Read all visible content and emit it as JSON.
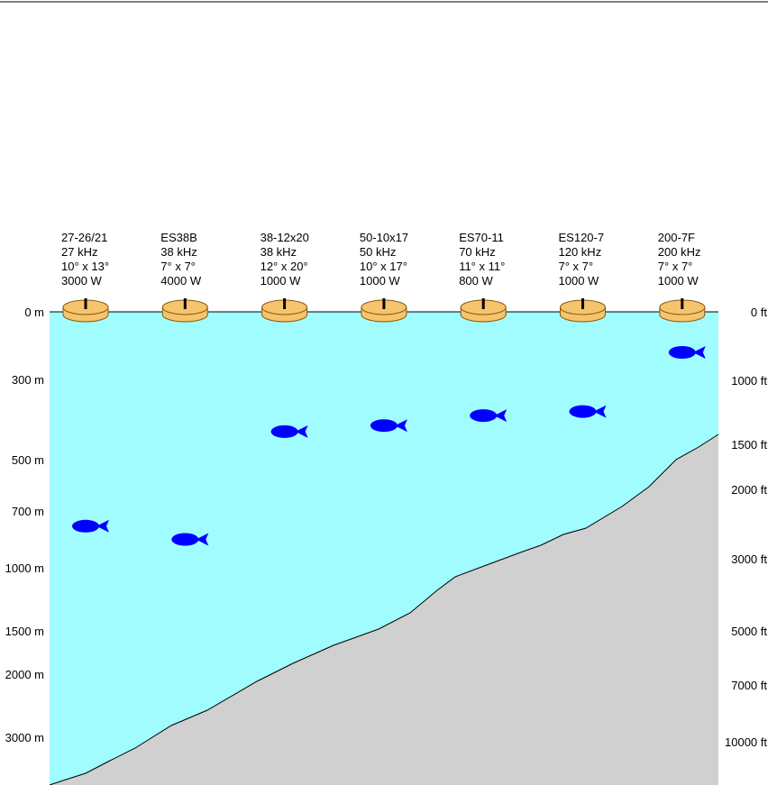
{
  "colors": {
    "water": "#a0fcfe",
    "seafloor": "#d0d0d0",
    "transducer": "#f6c46c",
    "transducer_outline": "#8a5a10",
    "fish": "#0000ff",
    "rule": "#000000"
  },
  "transducers": [
    {
      "model": "27-26/21",
      "frequency": "27 kHz",
      "beam": "10° x 13°",
      "power": "3000 W",
      "fish_depth_m": 780
    },
    {
      "model": "ES38B",
      "frequency": "38 kHz",
      "beam": "7° x 7°",
      "power": "4000 W",
      "fish_depth_m": 850
    },
    {
      "model": "38-12x20",
      "frequency": "38 kHz",
      "beam": "12° x 20°",
      "power": "1000 W",
      "fish_depth_m": 430
    },
    {
      "model": "50-10x17",
      "frequency": "50 kHz",
      "beam": "10° x 17°",
      "power": "1000 W",
      "fish_depth_m": 415
    },
    {
      "model": "ES70-11",
      "frequency": "70 kHz",
      "beam": "11° x 11°",
      "power": "800 W",
      "fish_depth_m": 390
    },
    {
      "model": "ES120-7",
      "frequency": "120 kHz",
      "beam": "7° x 7°",
      "power": "1000 W",
      "fish_depth_m": 380
    },
    {
      "model": "200-7F",
      "frequency": "200 kHz",
      "beam": "7° x 7°",
      "power": "1000 W",
      "fish_depth_m": 180
    }
  ],
  "depth_axis_m": [
    "0 m",
    "300 m",
    "500 m",
    "700 m",
    "1000 m",
    "1500 m",
    "2000 m",
    "3000 m"
  ],
  "depth_axis_ft": [
    "0 ft",
    "1000 ft",
    "1500 ft",
    "2000 ft",
    "3000 ft",
    "5000 ft",
    "7000 ft",
    "10000 ft"
  ]
}
